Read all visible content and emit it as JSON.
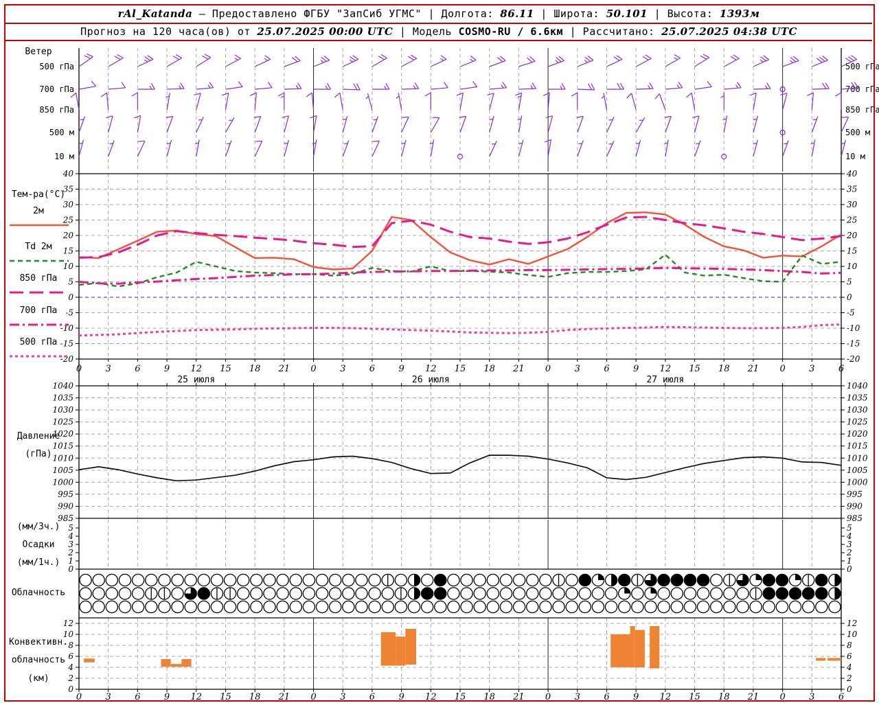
{
  "header": {
    "station": "rAl_Katanda",
    "provider": "— Предоставлено ФГБУ \"ЗапСиб УГМС\"",
    "lon_label": "| Долгота:",
    "lon": "86.11",
    "lat_label": "| Широта:",
    "lat": "50.101",
    "alt_label": "| Высота:",
    "alt": "1393м",
    "forecast_label": "Прогноз на 120 часа(ов) от",
    "forecast_start": "25.07.2025 00:00 UTC",
    "model_label": "| Модель",
    "model": "COSMO-RU / 6.6км",
    "calc_label": "| Рассчитано:",
    "calc_time": "25.07.2025 04:38 UTC"
  },
  "panels": {
    "wind": "Ветер",
    "temp": "Тем-ра(°C)",
    "pressure_line1": "Давление",
    "pressure_line2": "(гПа)",
    "precip_line1": "(мм/3ч.)",
    "precip_line2": "Осадки",
    "precip_line3": "(мм/1ч.)",
    "cloud": "Облачность",
    "conv_line1": "Конвективн.",
    "conv_line2": "облачность",
    "conv_line3": "(км)"
  },
  "legend": [
    {
      "label": "2м",
      "color": "#f85038",
      "dash": "",
      "width": 2.4
    },
    {
      "label": "Td  2м",
      "color": "#1e8c1e",
      "dash": "7 5",
      "width": 2.4
    },
    {
      "label": "850 гПа",
      "color": "#e8198b",
      "dash": "20 9",
      "width": 3
    },
    {
      "label": "700 гПа",
      "color": "#e8198b",
      "dash": "14 5 3 5",
      "width": 3
    },
    {
      "label": "500 гПа",
      "color": "#f23d9e",
      "dash": "4 4",
      "width": 3
    }
  ],
  "colors": {
    "frame": "#c40000",
    "grid": "#a9a9a9",
    "day_line": "#222222",
    "zero_line": "#2222ee",
    "wind_barb": "#8a2be2",
    "pressure_line": "#111111",
    "convective_bar": "#ee8433"
  },
  "chart_data": {
    "x_axis": {
      "start_hour": 0,
      "end_hour": 78,
      "tick_step_h": 3,
      "day_boundaries_h": [
        24,
        48,
        72
      ],
      "day_labels": [
        {
          "text": "25 июля",
          "h": 12
        },
        {
          "text": "26 июля",
          "h": 36
        },
        {
          "text": "27 июля",
          "h": 60
        }
      ]
    },
    "wind": {
      "type": "wind-barbs",
      "step_h": 3,
      "levels": [
        {
          "name": "500 гПа",
          "dirs": [
            55,
            60,
            65,
            60,
            58,
            62,
            65,
            70,
            68,
            65,
            60,
            62,
            65,
            68,
            70,
            72,
            70,
            68,
            65,
            62,
            60,
            58,
            62,
            66,
            70,
            68,
            65
          ],
          "spds": [
            20,
            20,
            25,
            20,
            20,
            15,
            15,
            20,
            25,
            25,
            20,
            20,
            15,
            15,
            20,
            20,
            25,
            25,
            20,
            20,
            15,
            20,
            20,
            25,
            25,
            30,
            30
          ]
        },
        {
          "name": "700 гПа",
          "dirs": [
            80,
            85,
            90,
            88,
            85,
            82,
            85,
            88,
            90,
            92,
            90,
            88,
            85,
            82,
            85,
            88,
            90,
            92,
            90,
            88,
            85,
            82,
            85,
            88,
            90,
            88,
            85
          ],
          "spds": [
            10,
            10,
            15,
            15,
            15,
            10,
            10,
            15,
            15,
            20,
            15,
            15,
            10,
            10,
            15,
            15,
            15,
            20,
            20,
            15,
            15,
            10,
            15,
            15,
            0,
            20,
            20
          ]
        },
        {
          "name": "850 гПа",
          "dirs": [
            350,
            355,
            0,
            10,
            15,
            10,
            5,
            0,
            355,
            350,
            345,
            350,
            0,
            10,
            15,
            10,
            5,
            0,
            350,
            345,
            340,
            350,
            0,
            10,
            15,
            5,
            0
          ],
          "spds": [
            10,
            10,
            10,
            5,
            10,
            10,
            10,
            15,
            10,
            10,
            5,
            5,
            10,
            10,
            10,
            15,
            10,
            10,
            5,
            10,
            10,
            10,
            5,
            10,
            10,
            10,
            10
          ]
        },
        {
          "name": "500 м",
          "dirs": [
            20,
            15,
            10,
            20,
            25,
            30,
            20,
            15,
            10,
            15,
            20,
            25,
            30,
            20,
            15,
            10,
            15,
            20,
            25,
            30,
            20,
            15,
            10,
            15,
            0,
            20,
            25
          ],
          "spds": [
            5,
            10,
            10,
            10,
            5,
            5,
            10,
            10,
            10,
            5,
            5,
            10,
            10,
            10,
            5,
            5,
            10,
            10,
            5,
            5,
            10,
            10,
            5,
            5,
            0,
            5,
            10
          ]
        },
        {
          "name": "10 м",
          "dirs": [
            15,
            20,
            25,
            15,
            10,
            20,
            25,
            15,
            10,
            20,
            25,
            15,
            10,
            20,
            25,
            15,
            10,
            20,
            25,
            15,
            10,
            20,
            0,
            15,
            20,
            10,
            15
          ],
          "spds": [
            5,
            5,
            10,
            5,
            5,
            5,
            10,
            5,
            5,
            5,
            10,
            5,
            5,
            0,
            5,
            5,
            10,
            5,
            5,
            5,
            5,
            5,
            0,
            5,
            5,
            5,
            5
          ]
        }
      ]
    },
    "temperature": {
      "type": "line",
      "ylim": [
        -20,
        40
      ],
      "tick_step": 5,
      "step_h": 2,
      "series": [
        {
          "name": "2м",
          "values": [
            13,
            12.7,
            15.5,
            18.3,
            21.2,
            21.6,
            20.5,
            19.8,
            16.2,
            12.7,
            12.8,
            12.3,
            9.8,
            9,
            9.3,
            15,
            26,
            25,
            19.5,
            14.5,
            12,
            10.6,
            12.3,
            10.8,
            13.2,
            15.6,
            19.5,
            24,
            27.3,
            27.5,
            26.8,
            23.5,
            19.5,
            16.5,
            15.2,
            12.8,
            13.5,
            13.2,
            16.5,
            20.3
          ]
        },
        {
          "name": "Td 2м",
          "values": [
            4,
            4.6,
            3.5,
            4.5,
            6.5,
            8,
            11.5,
            10,
            8.5,
            8,
            7.8,
            7.5,
            7.5,
            7,
            7.5,
            9.5,
            8.5,
            8.3,
            10,
            8.5,
            8.5,
            8.3,
            8,
            7.2,
            6.6,
            7.8,
            8.2,
            8.2,
            8.5,
            9,
            13.8,
            8,
            7,
            7.3,
            6.2,
            5.2,
            5,
            13.5,
            10.8,
            11.5
          ]
        },
        {
          "name": "850 гПа",
          "values": [
            12.8,
            13,
            14.5,
            17,
            20,
            21.4,
            20.8,
            20.2,
            19.8,
            19.3,
            18.9,
            18.3,
            17.5,
            17,
            16.3,
            16.5,
            24,
            24.8,
            23.5,
            21.2,
            19.5,
            19,
            18,
            17.3,
            17.8,
            19,
            21,
            23.5,
            25.8,
            26,
            25,
            24,
            23.3,
            22.3,
            21.2,
            20.5,
            19.5,
            18.5,
            19,
            19.8
          ]
        },
        {
          "name": "700 гПа",
          "values": [
            5,
            4.5,
            4.4,
            4.8,
            5.1,
            5.5,
            5.9,
            6.2,
            6.6,
            7,
            7.2,
            7.4,
            7.5,
            7.7,
            8,
            8.2,
            8.3,
            8.4,
            8.5,
            8.5,
            8.6,
            8.7,
            8.7,
            8.8,
            8.8,
            8.9,
            9,
            9.1,
            9.2,
            9.3,
            9.5,
            9.4,
            9.3,
            9.2,
            9,
            8.8,
            8.5,
            8.2,
            7.7,
            7.9
          ]
        },
        {
          "name": "500 гПа",
          "values": [
            -12.4,
            -12.2,
            -12,
            -11.6,
            -11.2,
            -10.9,
            -10.6,
            -10.5,
            -10.4,
            -10.2,
            -10.1,
            -10,
            -9.9,
            -9.9,
            -10,
            -10.2,
            -10.4,
            -10.6,
            -10.8,
            -11.1,
            -11.4,
            -11.5,
            -11.6,
            -11.5,
            -11.2,
            -10.6,
            -10.3,
            -10.1,
            -9.9,
            -9.8,
            -9.6,
            -9.7,
            -9.8,
            -9.9,
            -10,
            -10,
            -9.9,
            -9.6,
            -9,
            -8.8
          ]
        }
      ]
    },
    "pressure": {
      "type": "line",
      "ylim": [
        985,
        1040
      ],
      "tick_step": 5,
      "step_h": 2,
      "values": [
        1005.2,
        1006.4,
        1005.2,
        1003.4,
        1001.8,
        1000.6,
        1000.9,
        1001.9,
        1002.9,
        1004.6,
        1006.8,
        1008.5,
        1009.3,
        1010.5,
        1010.8,
        1009.8,
        1008.2,
        1005.6,
        1003.6,
        1003.8,
        1008,
        1011.2,
        1011.2,
        1010.8,
        1009.6,
        1008,
        1006,
        1001.8,
        1001.1,
        1002,
        1004,
        1006,
        1007.8,
        1009,
        1010.2,
        1010.5,
        1010,
        1008.4,
        1008.2,
        1007
      ]
    },
    "precipitation": {
      "type": "bar",
      "ylim": [
        0,
        6
      ],
      "ticks": [
        0,
        1,
        2,
        3,
        4,
        5
      ],
      "values": []
    },
    "cloud_cover": {
      "type": "symbols",
      "symbol_codes": {
        "0": "clear",
        "1": "vertical-line",
        "2": "quarter-filled",
        "4": "half-filled",
        "6": "three-quarter-filled",
        "8": "overcast"
      },
      "rows": [
        [
          0,
          0,
          0,
          0,
          0,
          0,
          0,
          0,
          0,
          0,
          0,
          0,
          0,
          0,
          0,
          0,
          0,
          0,
          0,
          0,
          0,
          0,
          0,
          1,
          0,
          4,
          0,
          8,
          0,
          0,
          0,
          0,
          0,
          0,
          0,
          0,
          1,
          0,
          8,
          2,
          4,
          8,
          1,
          6,
          8,
          8,
          8,
          8,
          0,
          1,
          6,
          2,
          8,
          8,
          2,
          1,
          8,
          4
        ],
        [
          0,
          0,
          0,
          0,
          0,
          1,
          1,
          0,
          6,
          8,
          1,
          1,
          0,
          0,
          0,
          0,
          0,
          0,
          0,
          0,
          0,
          0,
          0,
          0,
          1,
          4,
          8,
          8,
          0,
          0,
          0,
          0,
          0,
          0,
          0,
          0,
          0,
          0,
          0,
          0,
          0,
          2,
          0,
          2,
          0,
          0,
          0,
          0,
          0,
          0,
          0,
          1,
          8,
          8,
          8,
          8,
          8,
          4
        ],
        [
          0,
          0,
          0,
          0,
          0,
          0,
          0,
          0,
          0,
          0,
          0,
          0,
          0,
          0,
          0,
          0,
          0,
          0,
          0,
          0,
          0,
          0,
          0,
          0,
          0,
          0,
          0,
          0,
          0,
          0,
          0,
          0,
          0,
          0,
          0,
          0,
          0,
          0,
          0,
          0,
          0,
          0,
          0,
          0,
          0,
          0,
          0,
          0,
          0,
          0,
          0,
          0,
          0,
          0,
          0,
          0,
          0,
          0
        ]
      ]
    },
    "convective_cloud": {
      "type": "bar-range",
      "ylim": [
        0,
        13
      ],
      "ticks": [
        0,
        2,
        4,
        6,
        8,
        10,
        12
      ],
      "segments": [
        [
          0.5,
          1.6,
          4.9,
          5.6
        ],
        [
          8.4,
          9.4,
          4.1,
          5.5
        ],
        [
          9.4,
          10.5,
          4.1,
          4.6
        ],
        [
          10.5,
          11.5,
          4.1,
          5.5
        ],
        [
          30.9,
          32.4,
          4.3,
          10.4
        ],
        [
          32.4,
          33.4,
          4.3,
          9.6
        ],
        [
          33.4,
          34.5,
          4.5,
          11
        ],
        [
          54.4,
          56.4,
          4,
          10
        ],
        [
          56.4,
          56.9,
          4,
          11.5
        ],
        [
          56.9,
          57.9,
          4,
          10.8
        ],
        [
          58.4,
          59.4,
          3.8,
          11.5
        ],
        [
          75.4,
          76.4,
          5.2,
          5.7
        ],
        [
          76.6,
          78,
          5.2,
          5.7
        ]
      ]
    }
  }
}
